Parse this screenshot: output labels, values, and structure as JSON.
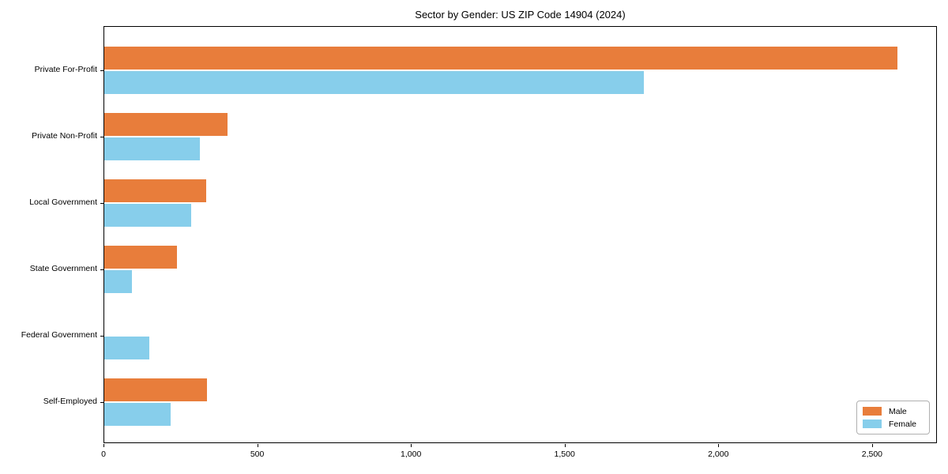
{
  "chart_data": {
    "type": "bar",
    "orientation": "horizontal",
    "title": "Sector by Gender: US ZIP Code 14904 (2024)",
    "categories": [
      "Private For-Profit",
      "Private Non-Profit",
      "Local Government",
      "State Government",
      "Federal Government",
      "Self-Employed"
    ],
    "series": [
      {
        "name": "Male",
        "color": "#E87D3B",
        "values": [
          2580,
          400,
          331,
          237,
          0,
          334
        ]
      },
      {
        "name": "Female",
        "color": "#87CEEB",
        "values": [
          1755,
          312,
          282,
          89,
          147,
          217
        ]
      }
    ],
    "xlabel": "",
    "ylabel": "",
    "xlim": [
      0,
      2711
    ],
    "x_ticks": [
      0,
      500,
      1000,
      1500,
      2000,
      2500
    ],
    "x_tick_labels": [
      "0",
      "500",
      "1,000",
      "1,500",
      "2,000",
      "2,500"
    ],
    "grid": false,
    "legend_position": "lower right",
    "axis_color": "#000000",
    "background_color": "#ffffff"
  }
}
